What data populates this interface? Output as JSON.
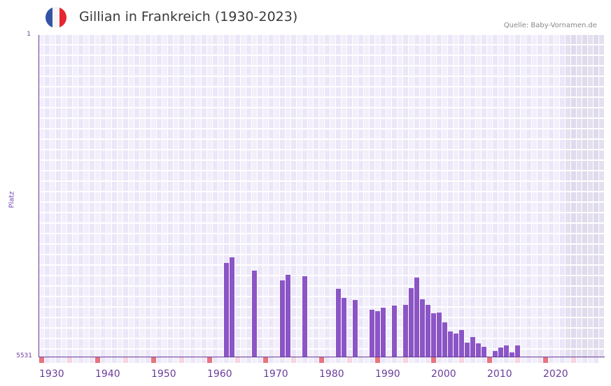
{
  "header": {
    "title": "Gillian in Frankreich (1930-2023)",
    "source": "Quelle: Baby-Vornamen.de",
    "flag_colors": [
      "#3453a4",
      "#f5f5f5",
      "#e62630"
    ]
  },
  "colors": {
    "bar": "#8b55c6",
    "axis": "#6a3d9a",
    "decade_tick": "#e8737d",
    "halfdecade_tick": "#f5d6df",
    "future_shade": "#e0dbed"
  },
  "chart_data": {
    "type": "bar",
    "title": "Gillian in Frankreich (1930-2023)",
    "xlabel": "",
    "ylabel": "Platz",
    "y_inverted": true,
    "ylim": [
      1,
      5531
    ],
    "yticks": [
      "1",
      "5531"
    ],
    "xlim": [
      1930,
      2030
    ],
    "xticks": [
      "1930",
      "1940",
      "1950",
      "1960",
      "1970",
      "1980",
      "1990",
      "2000",
      "2010",
      "2020"
    ],
    "future_shaded_from": 2024,
    "grid": true,
    "legend": null,
    "series": [
      {
        "name": "Platz",
        "x": [
          1963,
          1964,
          1968,
          1973,
          1974,
          1977,
          1983,
          1984,
          1986,
          1989,
          1990,
          1991,
          1993,
          1995,
          1996,
          1997,
          1998,
          1999,
          2000,
          2001,
          2002,
          2003,
          2004,
          2005,
          2006,
          2007,
          2008,
          2009,
          2011,
          2012,
          2013,
          2014,
          2015
        ],
        "values": [
          3920,
          3824,
          4052,
          4220,
          4124,
          4148,
          4364,
          4521,
          4557,
          4725,
          4749,
          4689,
          4653,
          4641,
          4352,
          4172,
          4545,
          4641,
          4785,
          4773,
          4941,
          5098,
          5134,
          5074,
          5290,
          5194,
          5302,
          5362,
          5434,
          5374,
          5338,
          5458,
          5338
        ]
      }
    ]
  },
  "axes": {
    "y_top": "1",
    "y_bottom": "5531",
    "y_label": "Platz",
    "x_labels": [
      "1930",
      "1940",
      "1950",
      "1960",
      "1970",
      "1980",
      "1990",
      "2000",
      "2010",
      "2020"
    ]
  }
}
